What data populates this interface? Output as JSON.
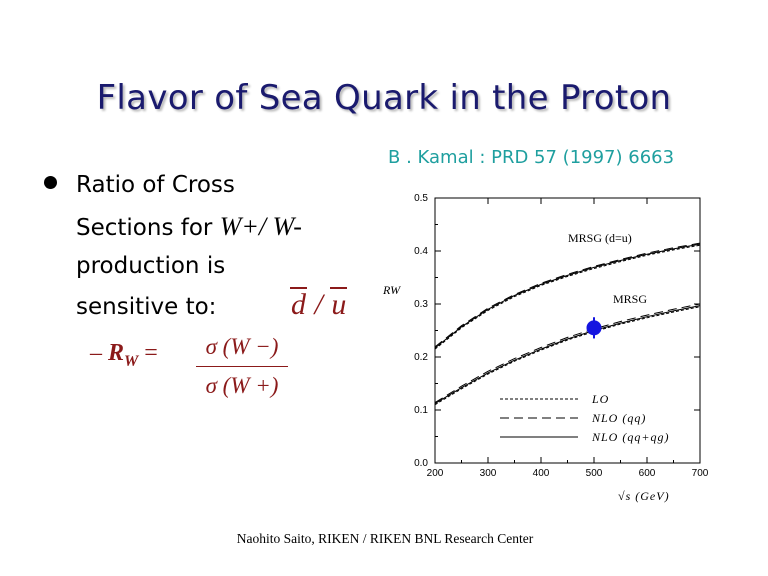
{
  "slide": {
    "title": "Flavor of Sea Quark in the Proton",
    "reference": "B . Kamal : PRD 57 (1997) 6663",
    "bullet": {
      "line1": "Ratio of Cross",
      "line2_prefix": "Sections for ",
      "w_plus_minus": "W+/ W-",
      "line3": "production is",
      "line4": "sensitive to:",
      "d_bar": "d",
      "ratio_slash": "/",
      "u_bar": "u"
    },
    "sub_item": {
      "dash": "–",
      "r_symbol": "R",
      "r_subscript": "W",
      "equals": "=",
      "numerator": "σ (W −)",
      "denominator": "σ (W +)"
    },
    "footer": "Naohito Saito, RIKEN / RIKEN BNL Research Center"
  },
  "chart_data": {
    "type": "line",
    "title": "",
    "xlabel": "√s (GeV)",
    "ylabel": "R_W",
    "xlim": [
      200,
      700
    ],
    "ylim": [
      0.0,
      0.5
    ],
    "x_ticks": [
      "200",
      "300",
      "400",
      "500",
      "600",
      "700"
    ],
    "y_ticks": [
      "0.0",
      "0.1",
      "0.2",
      "0.3",
      "0.4",
      "0.5"
    ],
    "grid": false,
    "legend": {
      "placement": "bottom-right",
      "entries": [
        "LO",
        "NLO (qq)",
        "NLO (qq+qg)"
      ]
    },
    "annotations": [
      "MRSG (d=u)",
      "MRSG"
    ],
    "series": [
      {
        "name": "LO",
        "group": "MRSG (d=u)",
        "style": "dashed",
        "x": [
          200,
          250,
          300,
          350,
          400,
          450,
          500,
          550,
          600,
          650,
          700
        ],
        "y": [
          0.215,
          0.255,
          0.288,
          0.314,
          0.335,
          0.352,
          0.367,
          0.38,
          0.392,
          0.402,
          0.411
        ]
      },
      {
        "name": "NLO (qq)",
        "group": "MRSG (d=u)",
        "style": "long-dashed",
        "x": [
          200,
          250,
          300,
          350,
          400,
          450,
          500,
          550,
          600,
          650,
          700
        ],
        "y": [
          0.219,
          0.259,
          0.292,
          0.318,
          0.339,
          0.356,
          0.371,
          0.384,
          0.396,
          0.406,
          0.415
        ]
      },
      {
        "name": "NLO (qq+qg)",
        "group": "MRSG (d=u)",
        "style": "solid",
        "x": [
          200,
          250,
          300,
          350,
          400,
          450,
          500,
          550,
          600,
          650,
          700
        ],
        "y": [
          0.217,
          0.257,
          0.29,
          0.316,
          0.337,
          0.354,
          0.369,
          0.382,
          0.394,
          0.404,
          0.413
        ]
      },
      {
        "name": "LO",
        "group": "MRSG",
        "style": "dashed",
        "x": [
          200,
          250,
          300,
          350,
          400,
          450,
          500,
          550,
          600,
          650,
          700
        ],
        "y": [
          0.11,
          0.14,
          0.168,
          0.192,
          0.213,
          0.232,
          0.248,
          0.262,
          0.274,
          0.285,
          0.295
        ]
      },
      {
        "name": "NLO (qq)",
        "group": "MRSG",
        "style": "long-dashed",
        "x": [
          200,
          250,
          300,
          350,
          400,
          450,
          500,
          550,
          600,
          650,
          700
        ],
        "y": [
          0.114,
          0.145,
          0.173,
          0.197,
          0.218,
          0.237,
          0.253,
          0.267,
          0.279,
          0.29,
          0.3
        ]
      },
      {
        "name": "NLO (qq+qg)",
        "group": "MRSG",
        "style": "solid",
        "x": [
          200,
          250,
          300,
          350,
          400,
          450,
          500,
          550,
          600,
          650,
          700
        ],
        "y": [
          0.112,
          0.142,
          0.17,
          0.194,
          0.215,
          0.234,
          0.25,
          0.264,
          0.276,
          0.287,
          0.297
        ]
      }
    ],
    "data_point": {
      "x": 500,
      "y": 0.255,
      "y_err": 0.02,
      "color": "#1515e0"
    }
  }
}
